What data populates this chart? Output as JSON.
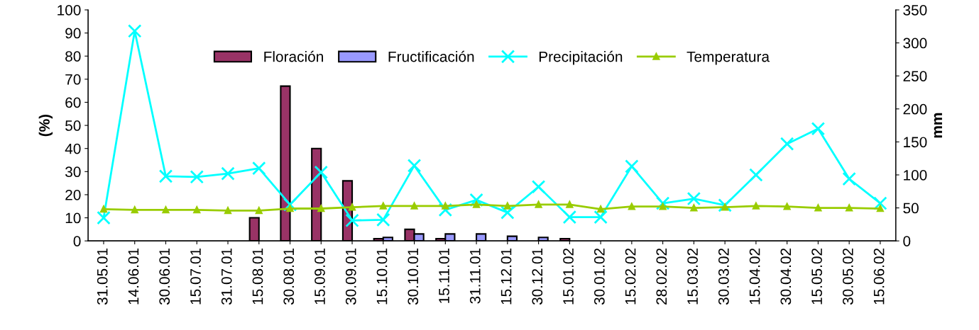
{
  "chart_data": {
    "type": "bar",
    "ylabel": "(%)",
    "y2label": "mm",
    "categories": [
      "31.05.01",
      "14.06.01",
      "30.06.01",
      "15.07.01",
      "31.07.01",
      "15.08.01",
      "30.08.01",
      "15.09.01",
      "30.09.01",
      "15.10.01",
      "30.10.01",
      "15.11.01",
      "31.11.01",
      "15.12.01",
      "30.12.01",
      "15.01.02",
      "30.01.02",
      "15.02.02",
      "28.02.02",
      "15.03.02",
      "30.03.02",
      "15.04.02",
      "30.04.02",
      "15.05.02",
      "30.05.02",
      "15.06.02"
    ],
    "series": [
      {
        "name": "Floración",
        "color": "#993366",
        "values": [
          null,
          null,
          null,
          null,
          null,
          10,
          67,
          40,
          26,
          1,
          5,
          1,
          null,
          null,
          null,
          1,
          null,
          null,
          null,
          null,
          null,
          null,
          null,
          null,
          null,
          null
        ]
      },
      {
        "name": "Fructificación",
        "color": "#9999ff",
        "values": [
          null,
          null,
          null,
          null,
          null,
          null,
          null,
          null,
          null,
          1.5,
          3,
          3,
          3,
          2,
          1.5,
          null,
          null,
          null,
          null,
          null,
          null,
          null,
          null,
          null,
          null,
          null
        ]
      },
      {
        "name": "Precipitación",
        "type": "line",
        "axis": "y2",
        "marker": "cross",
        "color": "#00ffff",
        "values": [
          35,
          318,
          98,
          97,
          102,
          110,
          55,
          104,
          31,
          32,
          114,
          47,
          62,
          43,
          82,
          36,
          36,
          113,
          57,
          64,
          54,
          100,
          147,
          170,
          94,
          57
        ]
      },
      {
        "name": "Temperatura",
        "type": "line",
        "axis": "y2",
        "marker": "triangle",
        "color": "#99cc00",
        "values": [
          48,
          47,
          47,
          47,
          46,
          46,
          49,
          49,
          51,
          53,
          53,
          53,
          55,
          53,
          55,
          55,
          48,
          52,
          52,
          50,
          51,
          53,
          52,
          50,
          50,
          49
        ]
      }
    ],
    "ylim": [
      0,
      100
    ],
    "yticks": [
      0,
      10,
      20,
      30,
      40,
      50,
      60,
      70,
      80,
      90,
      100
    ],
    "y2lim": [
      0,
      350
    ],
    "y2ticks": [
      0,
      50,
      100,
      150,
      200,
      250,
      300,
      350
    ],
    "grid": false,
    "legend": "top"
  }
}
